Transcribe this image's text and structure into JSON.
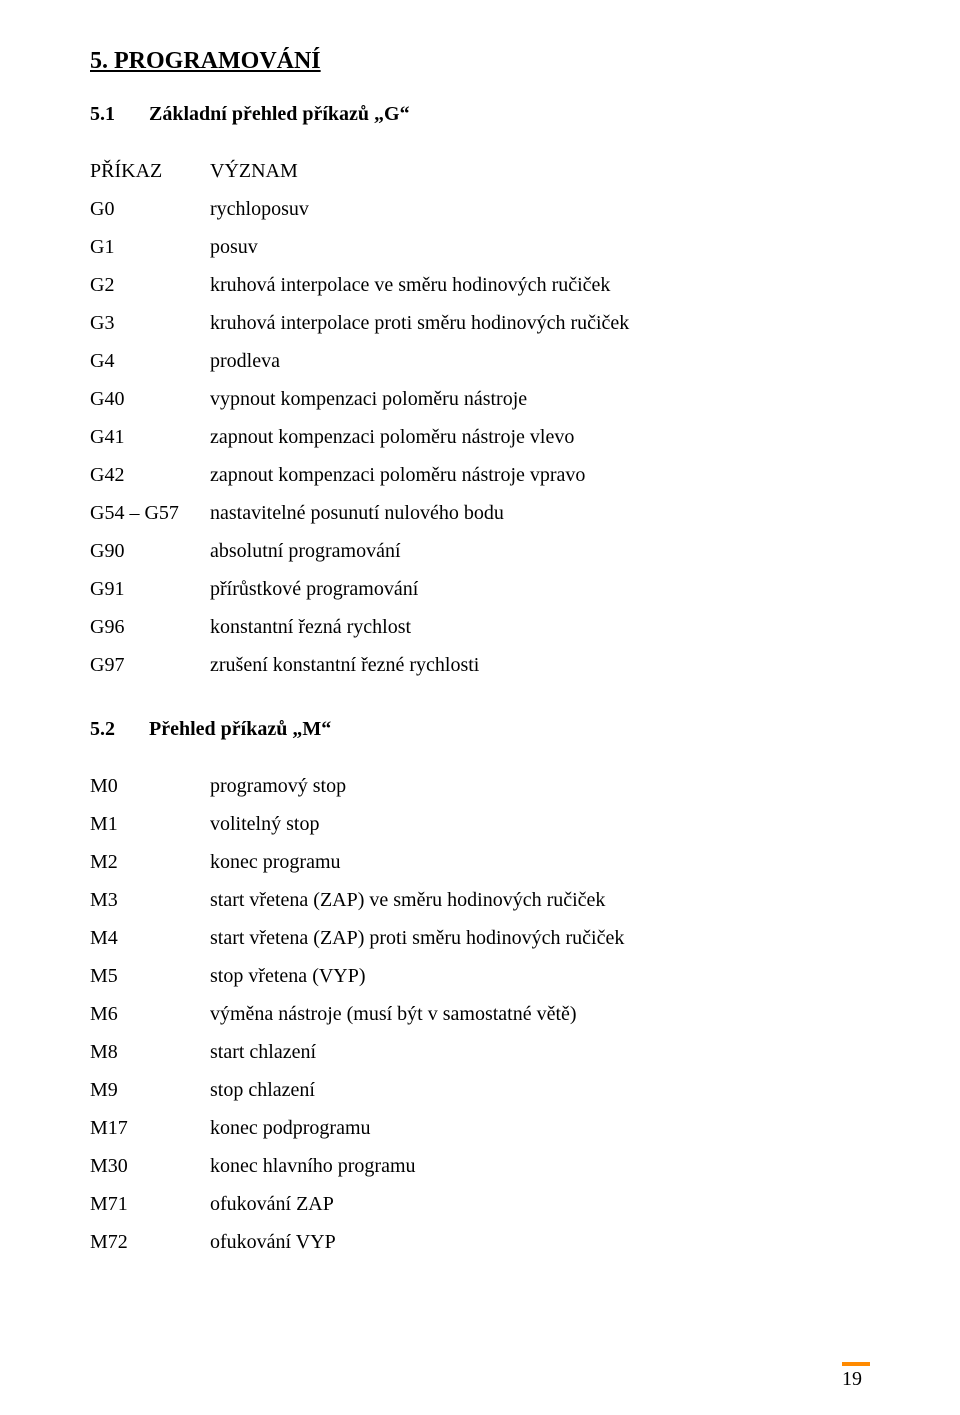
{
  "heading": "5. PROGRAMOVÁNÍ",
  "section_g": {
    "number": "5.1",
    "title": "Základní přehled příkazů „G“",
    "header": {
      "code": "PŘÍKAZ",
      "meaning": "VÝZNAM"
    },
    "rows": [
      {
        "code": "G0",
        "meaning": "rychloposuv"
      },
      {
        "code": "G1",
        "meaning": "posuv"
      },
      {
        "code": "G2",
        "meaning": "kruhová interpolace ve směru hodinových ručiček"
      },
      {
        "code": "G3",
        "meaning": "kruhová interpolace proti směru hodinových ručiček"
      },
      {
        "code": "G4",
        "meaning": "prodleva"
      },
      {
        "code": "G40",
        "meaning": "vypnout kompenzaci poloměru nástroje"
      },
      {
        "code": "G41",
        "meaning": "zapnout kompenzaci poloměru nástroje vlevo"
      },
      {
        "code": "G42",
        "meaning": "zapnout kompenzaci poloměru nástroje vpravo"
      },
      {
        "code": "G54 – G57",
        "meaning": "nastavitelné posunutí nulového bodu"
      },
      {
        "code": "G90",
        "meaning": "absolutní programování"
      },
      {
        "code": "G91",
        "meaning": "přírůstkové programování"
      },
      {
        "code": "G96",
        "meaning": "konstantní řezná rychlost"
      },
      {
        "code": "G97",
        "meaning": "zrušení konstantní řezné rychlosti"
      }
    ]
  },
  "section_m": {
    "number": "5.2",
    "title": "Přehled příkazů „M“",
    "rows": [
      {
        "code": "M0",
        "meaning": "programový stop"
      },
      {
        "code": "M1",
        "meaning": "volitelný stop"
      },
      {
        "code": "M2",
        "meaning": "konec programu"
      },
      {
        "code": "M3",
        "meaning": "start vřetena (ZAP) ve směru hodinových ručiček"
      },
      {
        "code": "M4",
        "meaning": "start vřetena (ZAP) proti směru hodinových ručiček"
      },
      {
        "code": "M5",
        "meaning": "stop vřetena (VYP)"
      },
      {
        "code": "M6",
        "meaning": "výměna nástroje (musí být v samostatné větě)"
      },
      {
        "code": "M8",
        "meaning": "start chlazení"
      },
      {
        "code": "M9",
        "meaning": "stop chlazení"
      },
      {
        "code": "M17",
        "meaning": "konec podprogramu"
      },
      {
        "code": "M30",
        "meaning": "konec hlavního programu"
      },
      {
        "code": "M71",
        "meaning": "ofukování ZAP"
      },
      {
        "code": "M72",
        "meaning": "ofukování VYP"
      }
    ]
  },
  "page_number": "19",
  "colors": {
    "accent_bar": "#ff8a00",
    "text": "#000000",
    "background": "#ffffff"
  }
}
